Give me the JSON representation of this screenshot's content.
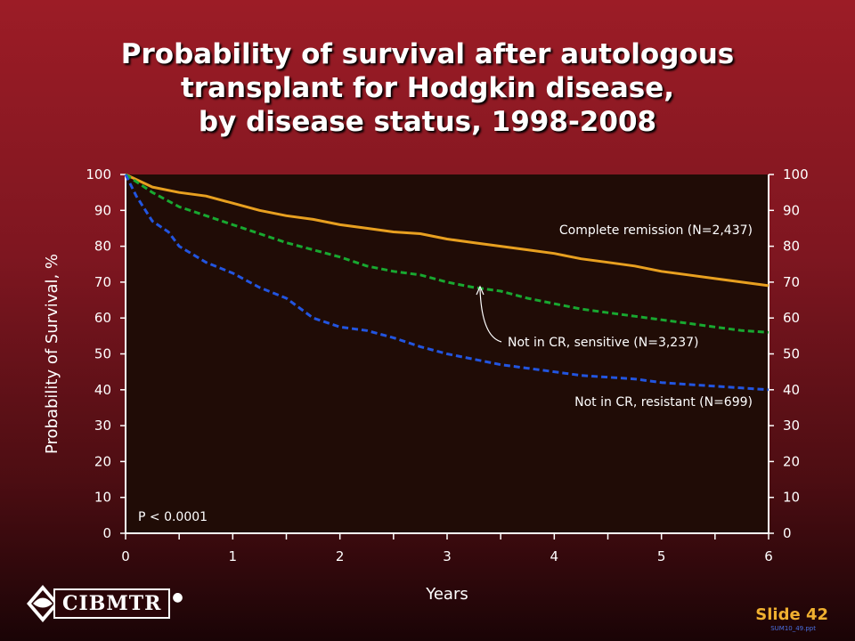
{
  "title_lines": [
    "Probability of survival after autologous",
    "transplant for Hodgkin disease,",
    "by disease status, 1998-2008"
  ],
  "slide_label": "Slide 42",
  "file_name": "SUM10_49.ppt",
  "logo_text": "CIBMTR",
  "colors": {
    "plot_bg": "#200c06",
    "axis": "#ffffff",
    "complete_remission": "#e8a020",
    "sensitive": "#18a830",
    "resistant": "#2255e0",
    "slide_label": "#f0b030"
  },
  "chart_data": {
    "type": "line",
    "xlabel": "Years",
    "ylabel": "Probability of Survival, %",
    "xlim": [
      0,
      6
    ],
    "ylim": [
      0,
      100
    ],
    "x_ticks": [
      "0",
      "1",
      "2",
      "3",
      "4",
      "5",
      "6"
    ],
    "y_ticks": [
      "0",
      "10",
      "20",
      "30",
      "40",
      "50",
      "60",
      "70",
      "80",
      "90",
      "100"
    ],
    "grid": false,
    "annotation_p": "P < 0.0001",
    "series": [
      {
        "name": "Complete remission (N=2,437)",
        "key": "complete_remission",
        "dash": "solid",
        "x": [
          0,
          0.25,
          0.5,
          0.75,
          1,
          1.25,
          1.5,
          1.75,
          2,
          2.25,
          2.5,
          2.75,
          3,
          3.25,
          3.5,
          3.75,
          4,
          4.25,
          4.5,
          4.75,
          5,
          5.25,
          5.5,
          5.75,
          6
        ],
        "y": [
          100,
          96.5,
          95,
          94,
          92,
          90,
          88.5,
          87.5,
          86,
          85,
          84,
          83.5,
          82,
          81,
          80,
          79,
          78,
          76.5,
          75.5,
          74.5,
          73,
          72,
          71,
          70,
          69
        ]
      },
      {
        "name": "Not in CR, sensitive (N=3,237)",
        "key": "sensitive",
        "dash": "dashed",
        "x": [
          0,
          0.25,
          0.5,
          0.75,
          1,
          1.25,
          1.5,
          1.75,
          2,
          2.25,
          2.5,
          2.75,
          3,
          3.25,
          3.5,
          3.75,
          4,
          4.25,
          4.5,
          4.75,
          5,
          5.25,
          5.5,
          5.75,
          6
        ],
        "y": [
          100,
          95,
          91,
          88.5,
          86,
          83.5,
          81,
          79,
          77,
          74.5,
          73,
          72,
          70,
          68.5,
          67.5,
          65.5,
          64,
          62.5,
          61.5,
          60.5,
          59.5,
          58.5,
          57.5,
          56.5,
          56
        ]
      },
      {
        "name": "Not in CR, resistant (N=699)",
        "key": "resistant",
        "dash": "dashed",
        "x": [
          0,
          0.1,
          0.25,
          0.4,
          0.5,
          0.75,
          1,
          1.25,
          1.5,
          1.75,
          2,
          2.25,
          2.5,
          2.75,
          3,
          3.25,
          3.5,
          3.75,
          4,
          4.25,
          4.5,
          4.75,
          5,
          5.25,
          5.5,
          5.75,
          6
        ],
        "y": [
          100,
          94,
          87,
          84,
          80,
          75.5,
          72.5,
          68.5,
          65.5,
          60,
          57.5,
          56.5,
          54.5,
          52,
          50,
          48.5,
          47,
          46,
          45,
          44,
          43.5,
          43,
          42,
          41.5,
          41,
          40.5,
          40
        ]
      }
    ],
    "labels": [
      {
        "text": "Complete remission (N=2,437)",
        "series": "complete_remission"
      },
      {
        "text": "Not in CR, sensitive (N=3,237)",
        "series": "sensitive"
      },
      {
        "text": "Not in CR, resistant (N=699)",
        "series": "resistant"
      }
    ]
  }
}
